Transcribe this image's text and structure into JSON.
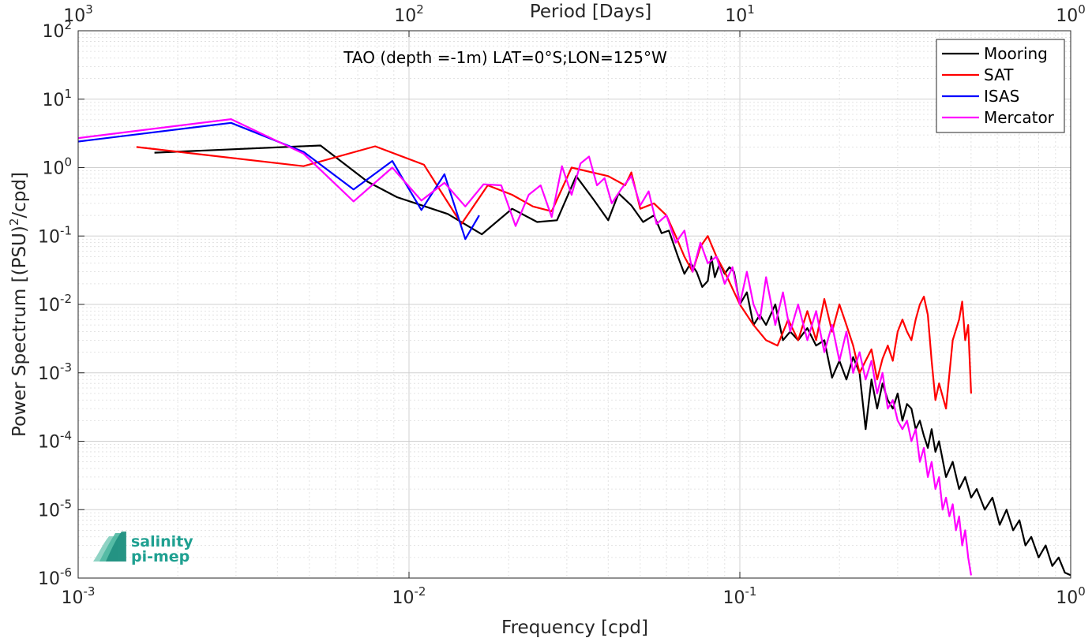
{
  "chart_data": {
    "type": "line",
    "title": "TAO (depth =-1m) LAT=0°S;LON=125°W",
    "xlabel": "Frequency [cpd]",
    "ylabel": "Power Spectrum [(PSU)^2/cpd]",
    "top_xlabel": "Period [Days]",
    "xscale": "log",
    "yscale": "log",
    "xlim": [
      0.001,
      1
    ],
    "ylim": [
      1e-06,
      100
    ],
    "top_xlim": [
      1000,
      1
    ],
    "grid": true,
    "legend_position": "top-right",
    "x_tick_labels": [
      {
        "base": "10",
        "exp": "-3"
      },
      {
        "base": "10",
        "exp": "-2"
      },
      {
        "base": "10",
        "exp": "-1"
      },
      {
        "base": "10",
        "exp": "0"
      }
    ],
    "top_tick_labels": [
      {
        "base": "10",
        "exp": "3"
      },
      {
        "base": "10",
        "exp": "2"
      },
      {
        "base": "10",
        "exp": "1"
      },
      {
        "base": "10",
        "exp": "0"
      }
    ],
    "y_tick_labels": [
      {
        "base": "10",
        "exp": "2"
      },
      {
        "base": "10",
        "exp": "1"
      },
      {
        "base": "10",
        "exp": "0"
      },
      {
        "base": "10",
        "exp": "-1"
      },
      {
        "base": "10",
        "exp": "-2"
      },
      {
        "base": "10",
        "exp": "-3"
      },
      {
        "base": "10",
        "exp": "-4"
      },
      {
        "base": "10",
        "exp": "-5"
      },
      {
        "base": "10",
        "exp": "-6"
      }
    ],
    "series": [
      {
        "name": "Mooring",
        "color": "#000000",
        "x": [
          0.0017,
          0.0054,
          0.0075,
          0.0092,
          0.0131,
          0.0166,
          0.0205,
          0.0244,
          0.028,
          0.032,
          0.036,
          0.04,
          0.043,
          0.047,
          0.051,
          0.055,
          0.058,
          0.061,
          0.065,
          0.068,
          0.071,
          0.074,
          0.077,
          0.08,
          0.082,
          0.084,
          0.087,
          0.09,
          0.093,
          0.096,
          0.1,
          0.105,
          0.11,
          0.115,
          0.12,
          0.128,
          0.135,
          0.142,
          0.15,
          0.16,
          0.17,
          0.18,
          0.19,
          0.2,
          0.21,
          0.22,
          0.23,
          0.24,
          0.25,
          0.26,
          0.27,
          0.28,
          0.29,
          0.3,
          0.31,
          0.32,
          0.33,
          0.34,
          0.35,
          0.36,
          0.37,
          0.38,
          0.39,
          0.4,
          0.42,
          0.44,
          0.46,
          0.48,
          0.5,
          0.52,
          0.55,
          0.58,
          0.61,
          0.64,
          0.67,
          0.7,
          0.73,
          0.76,
          0.8,
          0.84,
          0.88,
          0.92,
          0.96,
          1.0
        ],
        "y": [
          1.65,
          2.1,
          0.62,
          0.37,
          0.21,
          0.106,
          0.25,
          0.16,
          0.17,
          0.75,
          0.35,
          0.17,
          0.42,
          0.28,
          0.16,
          0.2,
          0.11,
          0.12,
          0.05,
          0.028,
          0.04,
          0.03,
          0.018,
          0.022,
          0.05,
          0.025,
          0.04,
          0.028,
          0.035,
          0.03,
          0.01,
          0.015,
          0.005,
          0.007,
          0.005,
          0.01,
          0.003,
          0.004,
          0.003,
          0.0045,
          0.0025,
          0.003,
          0.00085,
          0.0015,
          0.0008,
          0.0017,
          0.001,
          0.00015,
          0.0008,
          0.0003,
          0.0007,
          0.0004,
          0.0003,
          0.0005,
          0.0002,
          0.00035,
          0.0003,
          0.00015,
          0.0002,
          0.00012,
          8e-05,
          0.00015,
          7e-05,
          0.0001,
          3e-05,
          5e-05,
          2e-05,
          3e-05,
          1.5e-05,
          2e-05,
          1e-05,
          1.5e-05,
          6e-06,
          1e-05,
          5e-06,
          7e-06,
          3e-06,
          4e-06,
          2e-06,
          3e-06,
          1.5e-06,
          2e-06,
          1.2e-06,
          1.1e-06
        ]
      },
      {
        "name": "SAT",
        "color": "#ff0000",
        "x": [
          0.0015,
          0.0048,
          0.0079,
          0.0111,
          0.0144,
          0.0173,
          0.0205,
          0.0237,
          0.027,
          0.031,
          0.04,
          0.045,
          0.047,
          0.05,
          0.055,
          0.06,
          0.064,
          0.068,
          0.072,
          0.076,
          0.08,
          0.085,
          0.09,
          0.1,
          0.11,
          0.12,
          0.13,
          0.14,
          0.15,
          0.16,
          0.17,
          0.18,
          0.19,
          0.2,
          0.21,
          0.22,
          0.23,
          0.24,
          0.25,
          0.26,
          0.27,
          0.28,
          0.29,
          0.3,
          0.31,
          0.32,
          0.33,
          0.34,
          0.35,
          0.36,
          0.37,
          0.38,
          0.39,
          0.4,
          0.42,
          0.44,
          0.46,
          0.47,
          0.48,
          0.49,
          0.5
        ],
        "y": [
          2.0,
          1.05,
          2.05,
          1.1,
          0.15,
          0.55,
          0.4,
          0.27,
          0.23,
          1.0,
          0.75,
          0.55,
          0.85,
          0.25,
          0.3,
          0.2,
          0.1,
          0.05,
          0.03,
          0.07,
          0.1,
          0.05,
          0.03,
          0.01,
          0.005,
          0.003,
          0.0025,
          0.006,
          0.003,
          0.008,
          0.003,
          0.012,
          0.004,
          0.01,
          0.005,
          0.0025,
          0.001,
          0.0015,
          0.0022,
          0.0008,
          0.0016,
          0.0025,
          0.0015,
          0.004,
          0.006,
          0.004,
          0.003,
          0.006,
          0.01,
          0.013,
          0.007,
          0.0015,
          0.0004,
          0.0007,
          0.0003,
          0.003,
          0.006,
          0.011,
          0.003,
          0.005,
          0.0005
        ],
        "extra": {
          "x": [
            0.49,
            0.5
          ],
          "y": [
            0.0006,
            0.00045
          ]
        }
      },
      {
        "name": "ISAS",
        "color": "#0000ff",
        "x": [
          0.001,
          0.0029,
          0.0048,
          0.0068,
          0.0089,
          0.0109,
          0.0128,
          0.0148,
          0.0163
        ],
        "y": [
          2.4,
          4.5,
          1.7,
          0.48,
          1.25,
          0.24,
          0.8,
          0.09,
          0.2
        ]
      },
      {
        "name": "Mercator",
        "color": "#ff00ff",
        "x": [
          0.001,
          0.0029,
          0.0048,
          0.0068,
          0.0089,
          0.0109,
          0.0128,
          0.0148,
          0.0168,
          0.019,
          0.021,
          0.023,
          0.025,
          0.027,
          0.029,
          0.031,
          0.033,
          0.035,
          0.037,
          0.039,
          0.041,
          0.044,
          0.047,
          0.05,
          0.053,
          0.056,
          0.06,
          0.064,
          0.068,
          0.072,
          0.076,
          0.08,
          0.085,
          0.09,
          0.095,
          0.1,
          0.105,
          0.11,
          0.115,
          0.12,
          0.128,
          0.135,
          0.142,
          0.15,
          0.16,
          0.17,
          0.18,
          0.19,
          0.2,
          0.21,
          0.22,
          0.23,
          0.24,
          0.25,
          0.26,
          0.27,
          0.28,
          0.29,
          0.3,
          0.31,
          0.32,
          0.33,
          0.34,
          0.35,
          0.36,
          0.37,
          0.38,
          0.39,
          0.4,
          0.41,
          0.42,
          0.43,
          0.44,
          0.45,
          0.46,
          0.47,
          0.48,
          0.49,
          0.5
        ],
        "y": [
          2.7,
          5.1,
          1.6,
          0.32,
          1.0,
          0.33,
          0.6,
          0.27,
          0.57,
          0.55,
          0.14,
          0.4,
          0.55,
          0.19,
          1.05,
          0.4,
          1.15,
          1.45,
          0.55,
          0.7,
          0.3,
          0.5,
          0.75,
          0.28,
          0.45,
          0.15,
          0.2,
          0.08,
          0.12,
          0.03,
          0.08,
          0.04,
          0.05,
          0.02,
          0.035,
          0.01,
          0.03,
          0.01,
          0.006,
          0.025,
          0.005,
          0.015,
          0.004,
          0.01,
          0.003,
          0.008,
          0.002,
          0.005,
          0.0015,
          0.004,
          0.001,
          0.002,
          0.0008,
          0.0015,
          0.0005,
          0.001,
          0.0003,
          0.0004,
          0.0002,
          0.00015,
          0.0002,
          0.0001,
          0.00015,
          5e-05,
          8e-05,
          3e-05,
          5e-05,
          2e-05,
          3e-05,
          1e-05,
          1.5e-05,
          8e-06,
          1.2e-05,
          5e-06,
          8e-06,
          3e-06,
          5e-06,
          2e-06,
          1.1e-06
        ]
      }
    ]
  },
  "logo": {
    "line1": "salinity",
    "line2": "pi-mep"
  }
}
